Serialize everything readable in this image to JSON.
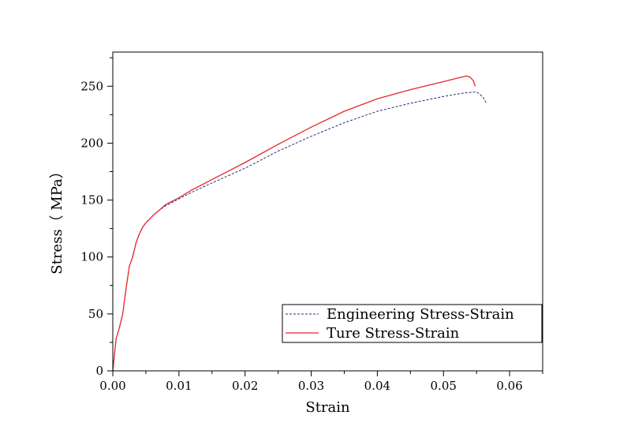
{
  "chart_data": {
    "type": "line",
    "title": "",
    "xlabel": "Strain",
    "ylabel": "Stress（ MPa）",
    "xlim": [
      0,
      0.065
    ],
    "ylim": [
      0,
      280
    ],
    "x_ticks": [
      0.0,
      0.01,
      0.02,
      0.03,
      0.04,
      0.05,
      0.06
    ],
    "x_tick_labels": [
      "0.00",
      "0.01",
      "0.02",
      "0.03",
      "0.04",
      "0.05",
      "0.06"
    ],
    "y_ticks": [
      0,
      50,
      100,
      150,
      200,
      250
    ],
    "y_tick_labels": [
      "0",
      "50",
      "100",
      "150",
      "200",
      "250"
    ],
    "grid": false,
    "legend_position": "bottom-right",
    "series": [
      {
        "name": "Engineering Stress-Strain",
        "color": "#2b2b7a",
        "style": "dashed",
        "x": [
          0,
          0.0005,
          0.001,
          0.0015,
          0.002,
          0.0025,
          0.003,
          0.0035,
          0.004,
          0.0045,
          0.005,
          0.006,
          0.007,
          0.008,
          0.01,
          0.012,
          0.015,
          0.02,
          0.025,
          0.03,
          0.035,
          0.04,
          0.045,
          0.05,
          0.053,
          0.055,
          0.0555,
          0.056,
          0.0565
        ],
        "y": [
          0,
          28,
          38,
          50,
          72,
          92,
          100,
          112,
          120,
          126,
          130,
          136,
          141,
          145,
          151,
          157,
          165,
          178,
          193,
          206,
          218,
          228,
          235,
          241,
          244,
          245,
          243,
          240,
          235
        ]
      },
      {
        "name": "Ture Stress-Strain",
        "color": "#e8262a",
        "style": "solid",
        "x": [
          0,
          0.0005,
          0.001,
          0.0015,
          0.002,
          0.0025,
          0.003,
          0.0035,
          0.004,
          0.0045,
          0.005,
          0.006,
          0.007,
          0.008,
          0.01,
          0.012,
          0.015,
          0.02,
          0.025,
          0.03,
          0.035,
          0.04,
          0.045,
          0.05,
          0.052,
          0.0535,
          0.054,
          0.0545,
          0.0548
        ],
        "y": [
          0,
          28,
          38,
          50,
          72,
          92,
          100,
          112,
          120,
          126,
          130,
          136,
          141,
          146,
          152,
          159,
          168,
          183,
          199,
          214,
          228,
          239,
          247,
          254,
          257,
          259,
          258,
          255,
          250
        ]
      }
    ]
  }
}
